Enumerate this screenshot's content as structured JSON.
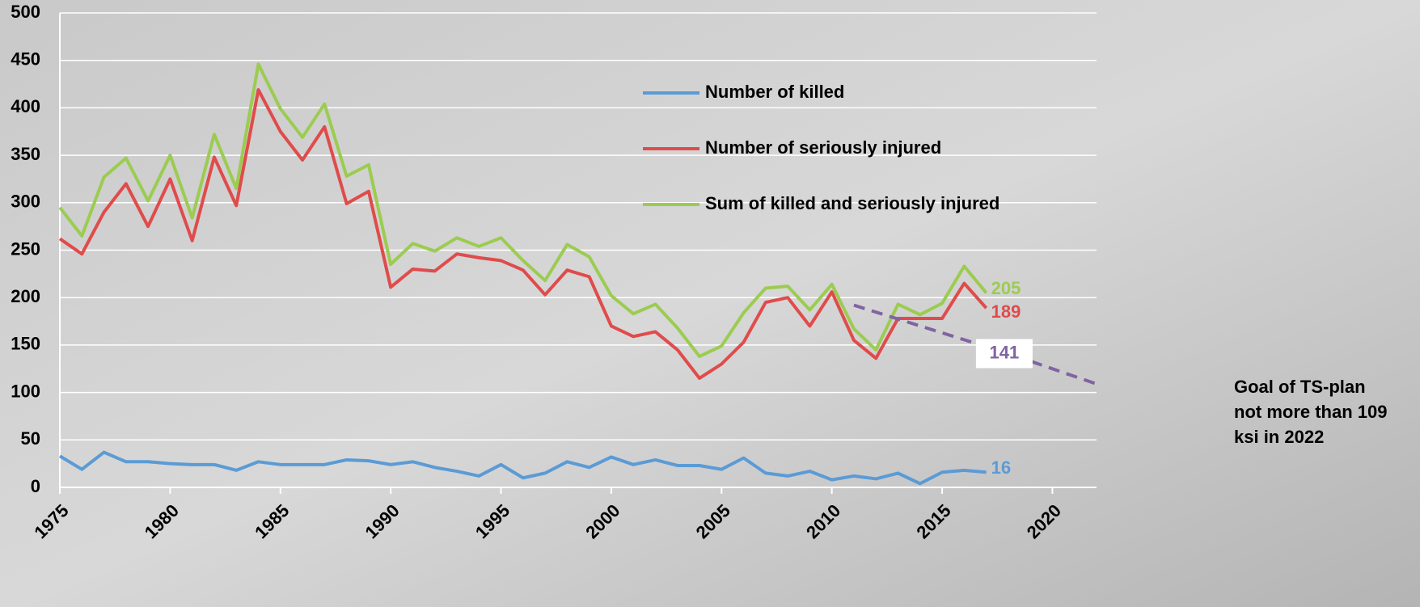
{
  "chart_data": {
    "type": "line",
    "x": [
      1975,
      1976,
      1977,
      1978,
      1979,
      1980,
      1981,
      1982,
      1983,
      1984,
      1985,
      1986,
      1987,
      1988,
      1989,
      1990,
      1991,
      1992,
      1993,
      1994,
      1995,
      1996,
      1997,
      1998,
      1999,
      2000,
      2001,
      2002,
      2003,
      2004,
      2005,
      2006,
      2007,
      2008,
      2009,
      2010,
      2011,
      2012,
      2013,
      2014,
      2015,
      2016,
      2017
    ],
    "series": [
      {
        "name": "Number of killed",
        "color": "#5b9bd5",
        "values": [
          33,
          19,
          37,
          27,
          27,
          25,
          24,
          24,
          18,
          27,
          24,
          24,
          24,
          29,
          28,
          24,
          27,
          21,
          17,
          12,
          24,
          10,
          15,
          27,
          21,
          32,
          24,
          29,
          23,
          23,
          19,
          31,
          15,
          12,
          17,
          8,
          12,
          9,
          15,
          4,
          16,
          18,
          16
        ]
      },
      {
        "name": "Number of seriously injured",
        "color": "#e04b4b",
        "values": [
          262,
          246,
          290,
          320,
          275,
          325,
          260,
          348,
          297,
          419,
          375,
          345,
          380,
          299,
          312,
          211,
          230,
          228,
          246,
          242,
          239,
          229,
          203,
          229,
          222,
          170,
          159,
          164,
          145,
          115,
          130,
          153,
          195,
          200,
          170,
          206,
          155,
          136,
          178,
          178,
          178,
          215,
          189
        ]
      },
      {
        "name": "Sum of killed and seriously injured",
        "color": "#9bcc50",
        "values": [
          295,
          265,
          327,
          347,
          302,
          350,
          284,
          372,
          315,
          446,
          399,
          369,
          404,
          328,
          340,
          235,
          257,
          249,
          263,
          254,
          263,
          239,
          218,
          256,
          243,
          202,
          183,
          193,
          168,
          138,
          149,
          184,
          210,
          212,
          187,
          214,
          167,
          145,
          193,
          182,
          194,
          233,
          205
        ]
      }
    ],
    "goal": {
      "x": [
        2011,
        2018,
        2022
      ],
      "values": [
        192,
        141,
        109
      ],
      "color": "#8064a2"
    },
    "annotation": [
      "Goal of TS-plan",
      "not more than 109",
      "ksi in 2022"
    ],
    "xlim": [
      1975,
      2022
    ],
    "xticks": [
      1975,
      1980,
      1985,
      1990,
      1995,
      2000,
      2005,
      2010,
      2015,
      2020
    ],
    "ylim": [
      0,
      500
    ],
    "yticks": [
      0,
      50,
      100,
      150,
      200,
      250,
      300,
      350,
      400,
      450,
      500
    ],
    "grid": true,
    "legend_position": "top-center",
    "end_labels": true
  }
}
